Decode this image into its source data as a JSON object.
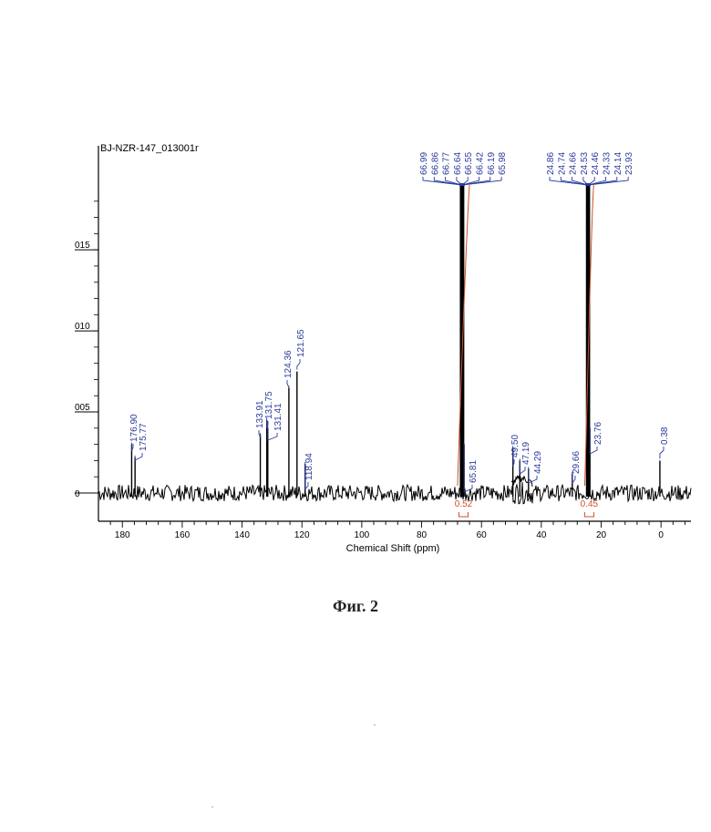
{
  "chart_data": {
    "type": "line",
    "title": "BJ-NZR-147_013001r",
    "xlabel": "Chemical Shift (ppm)",
    "ylabel": "",
    "xlim": [
      188,
      -10
    ],
    "ylim": [
      -0.1,
      0.2
    ],
    "x_ticks": [
      "180",
      "160",
      "140",
      "120",
      "100",
      "80",
      "60",
      "40",
      "20",
      "0"
    ],
    "y_ticks": [
      "0",
      "005",
      "010",
      "015"
    ],
    "peaks": [
      {
        "ppm": 176.9,
        "height": 0.03
      },
      {
        "ppm": 175.77,
        "height": 0.022
      },
      {
        "ppm": 133.91,
        "height": 0.036
      },
      {
        "ppm": 131.75,
        "height": 0.045
      },
      {
        "ppm": 131.41,
        "height": 0.04
      },
      {
        "ppm": 124.36,
        "height": 0.065
      },
      {
        "ppm": 121.65,
        "height": 0.075
      },
      {
        "ppm": 118.94,
        "height": 0.018
      },
      {
        "ppm": 66.99,
        "height": 0.19
      },
      {
        "ppm": 66.86,
        "height": 0.19
      },
      {
        "ppm": 66.77,
        "height": 0.19
      },
      {
        "ppm": 66.64,
        "height": 0.19
      },
      {
        "ppm": 66.55,
        "height": 0.19
      },
      {
        "ppm": 66.42,
        "height": 0.19
      },
      {
        "ppm": 66.19,
        "height": 0.19
      },
      {
        "ppm": 65.98,
        "height": 0.19
      },
      {
        "ppm": 65.81,
        "height": 0.03
      },
      {
        "ppm": 49.5,
        "height": 0.028
      },
      {
        "ppm": 47.19,
        "height": 0.02
      },
      {
        "ppm": 44.29,
        "height": 0.015
      },
      {
        "ppm": 29.66,
        "height": 0.012
      },
      {
        "ppm": 24.86,
        "height": 0.19
      },
      {
        "ppm": 24.74,
        "height": 0.19
      },
      {
        "ppm": 24.66,
        "height": 0.19
      },
      {
        "ppm": 24.53,
        "height": 0.19
      },
      {
        "ppm": 24.46,
        "height": 0.19
      },
      {
        "ppm": 24.33,
        "height": 0.19
      },
      {
        "ppm": 24.14,
        "height": 0.19
      },
      {
        "ppm": 23.93,
        "height": 0.19
      },
      {
        "ppm": 23.76,
        "height": 0.04
      },
      {
        "ppm": 0.38,
        "height": 0.02
      }
    ],
    "peak_labels": {
      "single": [
        "176.90",
        "175.77",
        "133.91",
        "131.75",
        "131.41",
        "124.36",
        "121.65",
        "118.94",
        "65.81",
        "49.50",
        "47.19",
        "44.29",
        "29.66",
        "23.76",
        "0.38"
      ],
      "cluster_66": [
        "66.99",
        "66.86",
        "66.77",
        "66.64",
        "66.55",
        "66.42",
        "66.19",
        "65.98"
      ],
      "cluster_24": [
        "24.86",
        "24.74",
        "24.66",
        "24.53",
        "24.46",
        "24.33",
        "24.14",
        "23.93"
      ]
    },
    "integrals": [
      {
        "value": "0.52",
        "from": 68,
        "to": 64
      },
      {
        "value": "0.45",
        "from": 25.5,
        "to": 22.5
      }
    ],
    "colors": {
      "trace": "#000000",
      "peak_label": "#2a3a9a",
      "integral": "#d0502a"
    },
    "grid": false
  },
  "figure": {
    "caption": "Фиг. 2"
  }
}
